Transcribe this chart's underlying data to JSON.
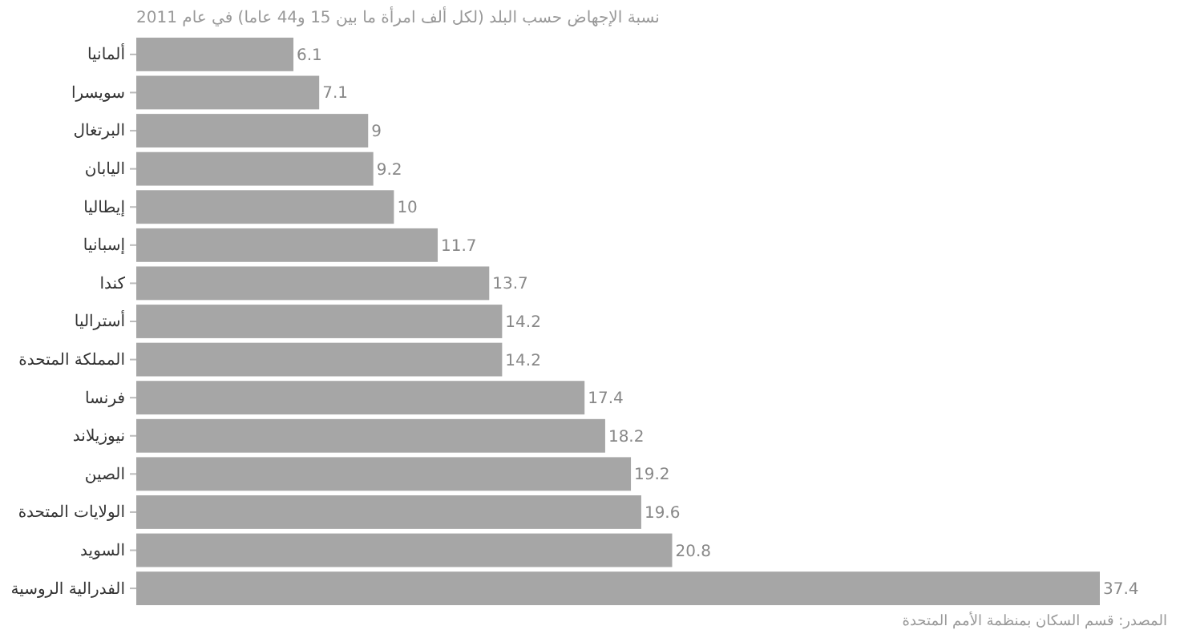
{
  "chart_data": {
    "type": "bar",
    "orientation": "horizontal",
    "title": "نسبة الإجهاض حسب البلد (لكل ألف امرأة ما بين 15 و44 عاما) في عام 2011",
    "categories": [
      "ألمانيا",
      "سويسرا",
      "البرتغال",
      "اليابان",
      "إيطاليا",
      "إسبانيا",
      "كندا",
      "أستراليا",
      "المملكة المتحدة",
      "فرنسا",
      "نيوزيلاند",
      "الصين",
      "الولايات المتحدة",
      "السويد",
      "الفدرالية الروسية"
    ],
    "values": [
      6.1,
      7.1,
      9,
      9.2,
      10,
      11.7,
      13.7,
      14.2,
      14.2,
      17.4,
      18.2,
      19.2,
      19.6,
      20.8,
      37.4
    ],
    "color": "#a6a6a6",
    "data_labels": true,
    "annotations": [
      "المصدر: قسم السكان بمنظمة الأمم المتحدة"
    ]
  }
}
